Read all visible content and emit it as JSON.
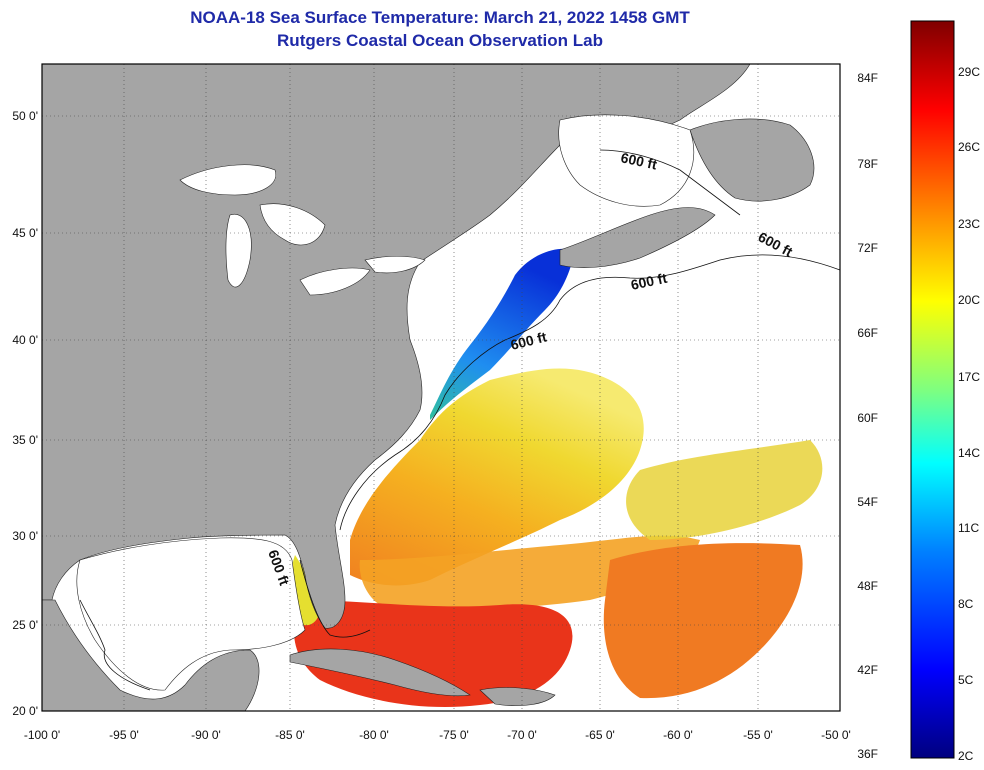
{
  "title": "NOAA-18 Sea Surface Temperature:  March 21, 2022 1458 GMT",
  "subtitle": "Rutgers Coastal Ocean Observation Lab",
  "x_ticks": [
    "-100 0'",
    "-95 0'",
    "-90 0'",
    "-85 0'",
    "-80 0'",
    "-75 0'",
    "-70 0'",
    "-65 0'",
    "-60 0'",
    "-55 0'",
    "-50 0'"
  ],
  "y_ticks": [
    "50 0'",
    "45 0'",
    "40 0'",
    "35 0'",
    "30 0'",
    "25 0'",
    "20 0'"
  ],
  "colorbar": {
    "f_labels": [
      "84F",
      "78F",
      "72F",
      "66F",
      "60F",
      "54F",
      "48F",
      "42F",
      "36F"
    ],
    "c_labels": [
      "29C",
      "26C",
      "23C",
      "20C",
      "17C",
      "14C",
      "11C",
      "8C",
      "5C",
      "2C"
    ]
  },
  "contour_labels": [
    "600 ft",
    "600 ft",
    "600 ft",
    "600 ft",
    "600 ft"
  ],
  "colors": {
    "land": "#a5a5a5",
    "no_data": "#ffffff",
    "title": "#1f2aa8",
    "cold": "#0a2fd0",
    "warm": "#e8401a"
  }
}
